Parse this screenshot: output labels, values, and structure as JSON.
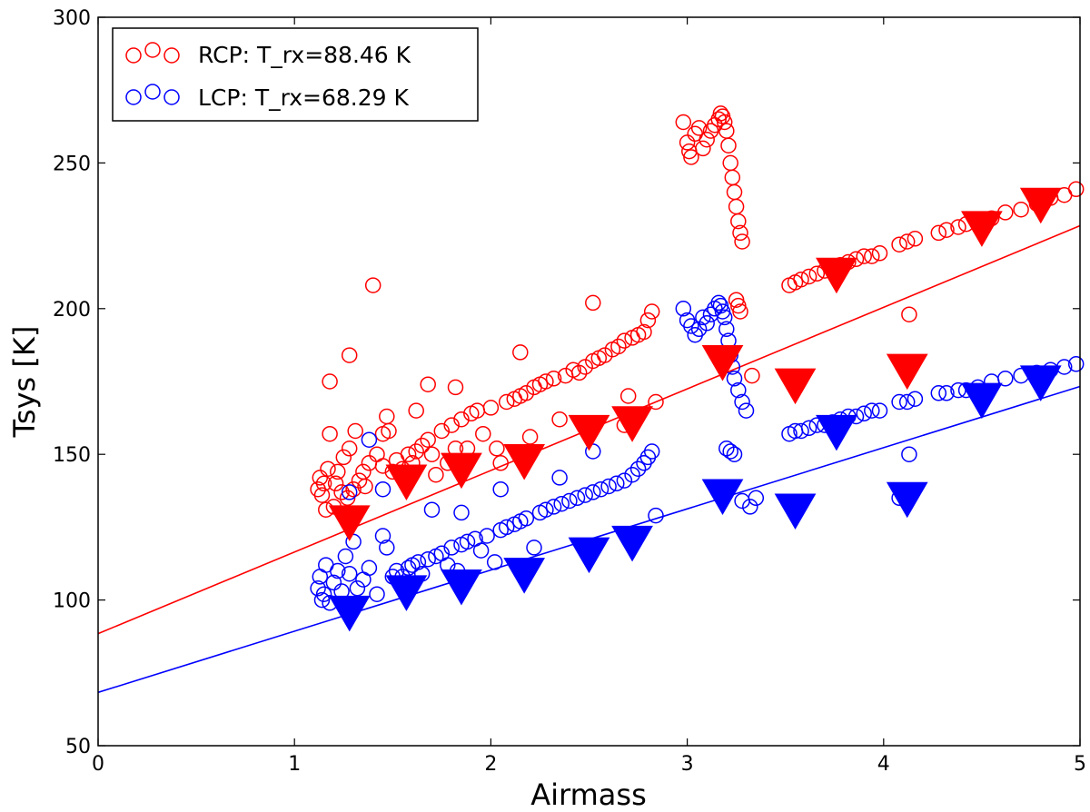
{
  "chart_data": {
    "type": "scatter",
    "xlabel": "Airmass",
    "ylabel": "Tsys [K]",
    "xlim": [
      0,
      5
    ],
    "ylim": [
      50,
      300
    ],
    "xticks": [
      0,
      1,
      2,
      3,
      4,
      5
    ],
    "xtick_labels": [
      "0",
      "1",
      "2",
      "3",
      "4",
      "5"
    ],
    "yticks": [
      50,
      100,
      150,
      200,
      250,
      300
    ],
    "ytick_labels": [
      "50",
      "100",
      "150",
      "200",
      "250",
      "300"
    ],
    "grid": false,
    "legend_position": "top-left",
    "series": [
      {
        "name": "RCP",
        "legend_label": "RCP: T_rx=88.46 K",
        "color": "#ff0000",
        "fit_line": {
          "intercept": 88.46,
          "slope": 28.0
        },
        "points": [
          [
            1.12,
            138
          ],
          [
            1.13,
            142
          ],
          [
            1.14,
            136
          ],
          [
            1.15,
            140
          ],
          [
            1.16,
            131
          ],
          [
            1.17,
            145
          ],
          [
            1.18,
            157
          ],
          [
            1.2,
            132
          ],
          [
            1.21,
            140
          ],
          [
            1.22,
            144
          ],
          [
            1.24,
            137
          ],
          [
            1.25,
            149
          ],
          [
            1.27,
            135
          ],
          [
            1.28,
            152
          ],
          [
            1.3,
            138
          ],
          [
            1.31,
            158
          ],
          [
            1.33,
            141
          ],
          [
            1.35,
            144
          ],
          [
            1.36,
            139
          ],
          [
            1.38,
            147
          ],
          [
            1.42,
            150
          ],
          [
            1.45,
            146
          ],
          [
            1.47,
            163
          ],
          [
            1.48,
            158
          ],
          [
            1.5,
            144
          ],
          [
            1.52,
            148
          ],
          [
            1.55,
            145
          ],
          [
            1.58,
            150
          ],
          [
            1.6,
            147
          ],
          [
            1.62,
            151
          ],
          [
            1.65,
            153
          ],
          [
            1.68,
            155
          ],
          [
            1.7,
            150
          ],
          [
            1.72,
            143
          ],
          [
            1.75,
            158
          ],
          [
            1.78,
            147
          ],
          [
            1.8,
            160
          ],
          [
            1.82,
            152
          ],
          [
            1.85,
            162
          ],
          [
            1.88,
            152
          ],
          [
            1.9,
            164
          ],
          [
            1.93,
            165
          ],
          [
            1.96,
            157
          ],
          [
            2.0,
            166
          ],
          [
            2.03,
            152
          ],
          [
            2.05,
            147
          ],
          [
            2.08,
            168
          ],
          [
            2.12,
            169
          ],
          [
            2.15,
            170
          ],
          [
            2.18,
            171
          ],
          [
            2.2,
            156
          ],
          [
            2.22,
            173
          ],
          [
            2.25,
            174
          ],
          [
            2.28,
            175
          ],
          [
            2.32,
            176
          ],
          [
            2.35,
            162
          ],
          [
            2.38,
            177
          ],
          [
            2.42,
            179
          ],
          [
            2.45,
            178
          ],
          [
            2.48,
            180
          ],
          [
            2.52,
            182
          ],
          [
            2.55,
            183
          ],
          [
            2.58,
            184
          ],
          [
            2.62,
            186
          ],
          [
            2.65,
            187
          ],
          [
            2.68,
            189
          ],
          [
            2.7,
            170
          ],
          [
            2.72,
            190
          ],
          [
            2.75,
            191
          ],
          [
            2.78,
            192
          ],
          [
            2.8,
            196
          ],
          [
            2.82,
            199
          ],
          [
            2.84,
            168
          ],
          [
            1.18,
            175
          ],
          [
            1.28,
            184
          ],
          [
            1.4,
            208
          ],
          [
            1.45,
            157
          ],
          [
            1.62,
            165
          ],
          [
            1.68,
            174
          ],
          [
            1.82,
            173
          ],
          [
            2.15,
            185
          ],
          [
            2.52,
            202
          ],
          [
            2.68,
            160
          ],
          [
            2.98,
            264
          ],
          [
            3.0,
            257
          ],
          [
            3.01,
            254
          ],
          [
            3.02,
            252
          ],
          [
            3.04,
            260
          ],
          [
            3.06,
            262
          ],
          [
            3.08,
            255
          ],
          [
            3.1,
            258
          ],
          [
            3.12,
            261
          ],
          [
            3.14,
            263
          ],
          [
            3.16,
            265
          ],
          [
            3.17,
            267
          ],
          [
            3.18,
            266
          ],
          [
            3.19,
            264
          ],
          [
            3.2,
            261
          ],
          [
            3.21,
            256
          ],
          [
            3.22,
            250
          ],
          [
            3.23,
            245
          ],
          [
            3.24,
            240
          ],
          [
            3.25,
            235
          ],
          [
            3.26,
            230
          ],
          [
            3.27,
            226
          ],
          [
            3.28,
            223
          ],
          [
            3.25,
            203
          ],
          [
            3.26,
            201
          ],
          [
            3.27,
            199
          ],
          [
            3.33,
            177
          ],
          [
            3.52,
            208
          ],
          [
            3.55,
            209
          ],
          [
            3.58,
            210
          ],
          [
            3.62,
            211
          ],
          [
            3.66,
            212
          ],
          [
            3.7,
            213
          ],
          [
            3.74,
            214
          ],
          [
            3.78,
            215
          ],
          [
            3.82,
            216
          ],
          [
            3.86,
            217
          ],
          [
            3.9,
            218
          ],
          [
            3.94,
            218
          ],
          [
            3.98,
            219
          ],
          [
            4.08,
            222
          ],
          [
            4.12,
            223
          ],
          [
            4.16,
            224
          ],
          [
            4.28,
            226
          ],
          [
            4.32,
            227
          ],
          [
            4.38,
            228
          ],
          [
            4.42,
            229
          ],
          [
            4.48,
            230
          ],
          [
            4.55,
            231
          ],
          [
            4.62,
            233
          ],
          [
            4.7,
            234
          ],
          [
            4.78,
            236
          ],
          [
            4.85,
            238
          ],
          [
            4.92,
            239
          ],
          [
            4.98,
            241
          ],
          [
            4.13,
            198
          ]
        ],
        "averages": [
          [
            1.28,
            127
          ],
          [
            1.57,
            141
          ],
          [
            1.85,
            145
          ],
          [
            2.17,
            148
          ],
          [
            2.5,
            158
          ],
          [
            2.72,
            161
          ],
          [
            3.18,
            182
          ],
          [
            3.55,
            174
          ],
          [
            3.76,
            212
          ],
          [
            4.12,
            179
          ],
          [
            4.5,
            228
          ],
          [
            4.8,
            236
          ]
        ]
      },
      {
        "name": "LCP",
        "legend_label": "LCP: T_rx=68.29 K",
        "color": "#0000ff",
        "fit_line": {
          "intercept": 68.29,
          "slope": 21.0
        },
        "points": [
          [
            1.12,
            104
          ],
          [
            1.13,
            108
          ],
          [
            1.14,
            100
          ],
          [
            1.15,
            102
          ],
          [
            1.16,
            112
          ],
          [
            1.18,
            99
          ],
          [
            1.2,
            106
          ],
          [
            1.22,
            110
          ],
          [
            1.24,
            103
          ],
          [
            1.26,
            115
          ],
          [
            1.28,
            109
          ],
          [
            1.3,
            120
          ],
          [
            1.32,
            104
          ],
          [
            1.35,
            107
          ],
          [
            1.38,
            111
          ],
          [
            1.42,
            102
          ],
          [
            1.45,
            122
          ],
          [
            1.47,
            118
          ],
          [
            1.5,
            108
          ],
          [
            1.52,
            110
          ],
          [
            1.55,
            108
          ],
          [
            1.58,
            111
          ],
          [
            1.6,
            112
          ],
          [
            1.63,
            113
          ],
          [
            1.65,
            109
          ],
          [
            1.68,
            114
          ],
          [
            1.72,
            115
          ],
          [
            1.75,
            116
          ],
          [
            1.78,
            112
          ],
          [
            1.8,
            118
          ],
          [
            1.83,
            110
          ],
          [
            1.85,
            119
          ],
          [
            1.88,
            120
          ],
          [
            1.92,
            121
          ],
          [
            1.95,
            117
          ],
          [
            1.98,
            122
          ],
          [
            2.02,
            113
          ],
          [
            2.05,
            124
          ],
          [
            2.08,
            125
          ],
          [
            2.12,
            126
          ],
          [
            2.15,
            127
          ],
          [
            2.18,
            128
          ],
          [
            2.22,
            118
          ],
          [
            2.25,
            130
          ],
          [
            2.28,
            131
          ],
          [
            2.32,
            132
          ],
          [
            2.36,
            133
          ],
          [
            2.4,
            134
          ],
          [
            2.44,
            135
          ],
          [
            2.48,
            136
          ],
          [
            2.52,
            137
          ],
          [
            2.56,
            138
          ],
          [
            2.6,
            139
          ],
          [
            2.64,
            140
          ],
          [
            2.68,
            141
          ],
          [
            2.72,
            143
          ],
          [
            2.75,
            145
          ],
          [
            2.78,
            147
          ],
          [
            2.8,
            149
          ],
          [
            2.82,
            151
          ],
          [
            2.84,
            129
          ],
          [
            1.28,
            137
          ],
          [
            1.38,
            155
          ],
          [
            1.45,
            138
          ],
          [
            1.7,
            131
          ],
          [
            1.85,
            130
          ],
          [
            2.05,
            138
          ],
          [
            2.35,
            142
          ],
          [
            2.52,
            151
          ],
          [
            2.98,
            200
          ],
          [
            3.0,
            196
          ],
          [
            3.02,
            194
          ],
          [
            3.04,
            191
          ],
          [
            3.06,
            193
          ],
          [
            3.08,
            197
          ],
          [
            3.1,
            195
          ],
          [
            3.12,
            198
          ],
          [
            3.14,
            200
          ],
          [
            3.16,
            202
          ],
          [
            3.17,
            201
          ],
          [
            3.18,
            199
          ],
          [
            3.19,
            197
          ],
          [
            3.2,
            193
          ],
          [
            3.21,
            189
          ],
          [
            3.22,
            184
          ],
          [
            3.23,
            180
          ],
          [
            3.24,
            176
          ],
          [
            3.26,
            172
          ],
          [
            3.28,
            168
          ],
          [
            3.3,
            165
          ],
          [
            3.2,
            152
          ],
          [
            3.22,
            151
          ],
          [
            3.24,
            150
          ],
          [
            3.28,
            134
          ],
          [
            3.32,
            132
          ],
          [
            3.35,
            135
          ],
          [
            3.52,
            157
          ],
          [
            3.55,
            158
          ],
          [
            3.58,
            158
          ],
          [
            3.62,
            159
          ],
          [
            3.66,
            160
          ],
          [
            3.7,
            160
          ],
          [
            3.74,
            161
          ],
          [
            3.78,
            162
          ],
          [
            3.82,
            163
          ],
          [
            3.86,
            163
          ],
          [
            3.9,
            164
          ],
          [
            3.94,
            165
          ],
          [
            3.98,
            165
          ],
          [
            4.08,
            168
          ],
          [
            4.12,
            168
          ],
          [
            4.16,
            169
          ],
          [
            4.28,
            171
          ],
          [
            4.32,
            171
          ],
          [
            4.38,
            172
          ],
          [
            4.42,
            172
          ],
          [
            4.48,
            173
          ],
          [
            4.55,
            175
          ],
          [
            4.62,
            176
          ],
          [
            4.7,
            177
          ],
          [
            4.78,
            178
          ],
          [
            4.85,
            179
          ],
          [
            4.92,
            180
          ],
          [
            4.98,
            181
          ],
          [
            4.13,
            150
          ],
          [
            4.08,
            135
          ]
        ],
        "averages": [
          [
            1.28,
            96
          ],
          [
            1.57,
            103
          ],
          [
            1.85,
            105
          ],
          [
            2.17,
            109
          ],
          [
            2.5,
            116
          ],
          [
            2.72,
            120
          ],
          [
            3.18,
            136
          ],
          [
            3.55,
            131
          ],
          [
            3.76,
            158
          ],
          [
            4.12,
            135
          ],
          [
            4.5,
            169
          ],
          [
            4.8,
            175
          ]
        ]
      }
    ]
  }
}
